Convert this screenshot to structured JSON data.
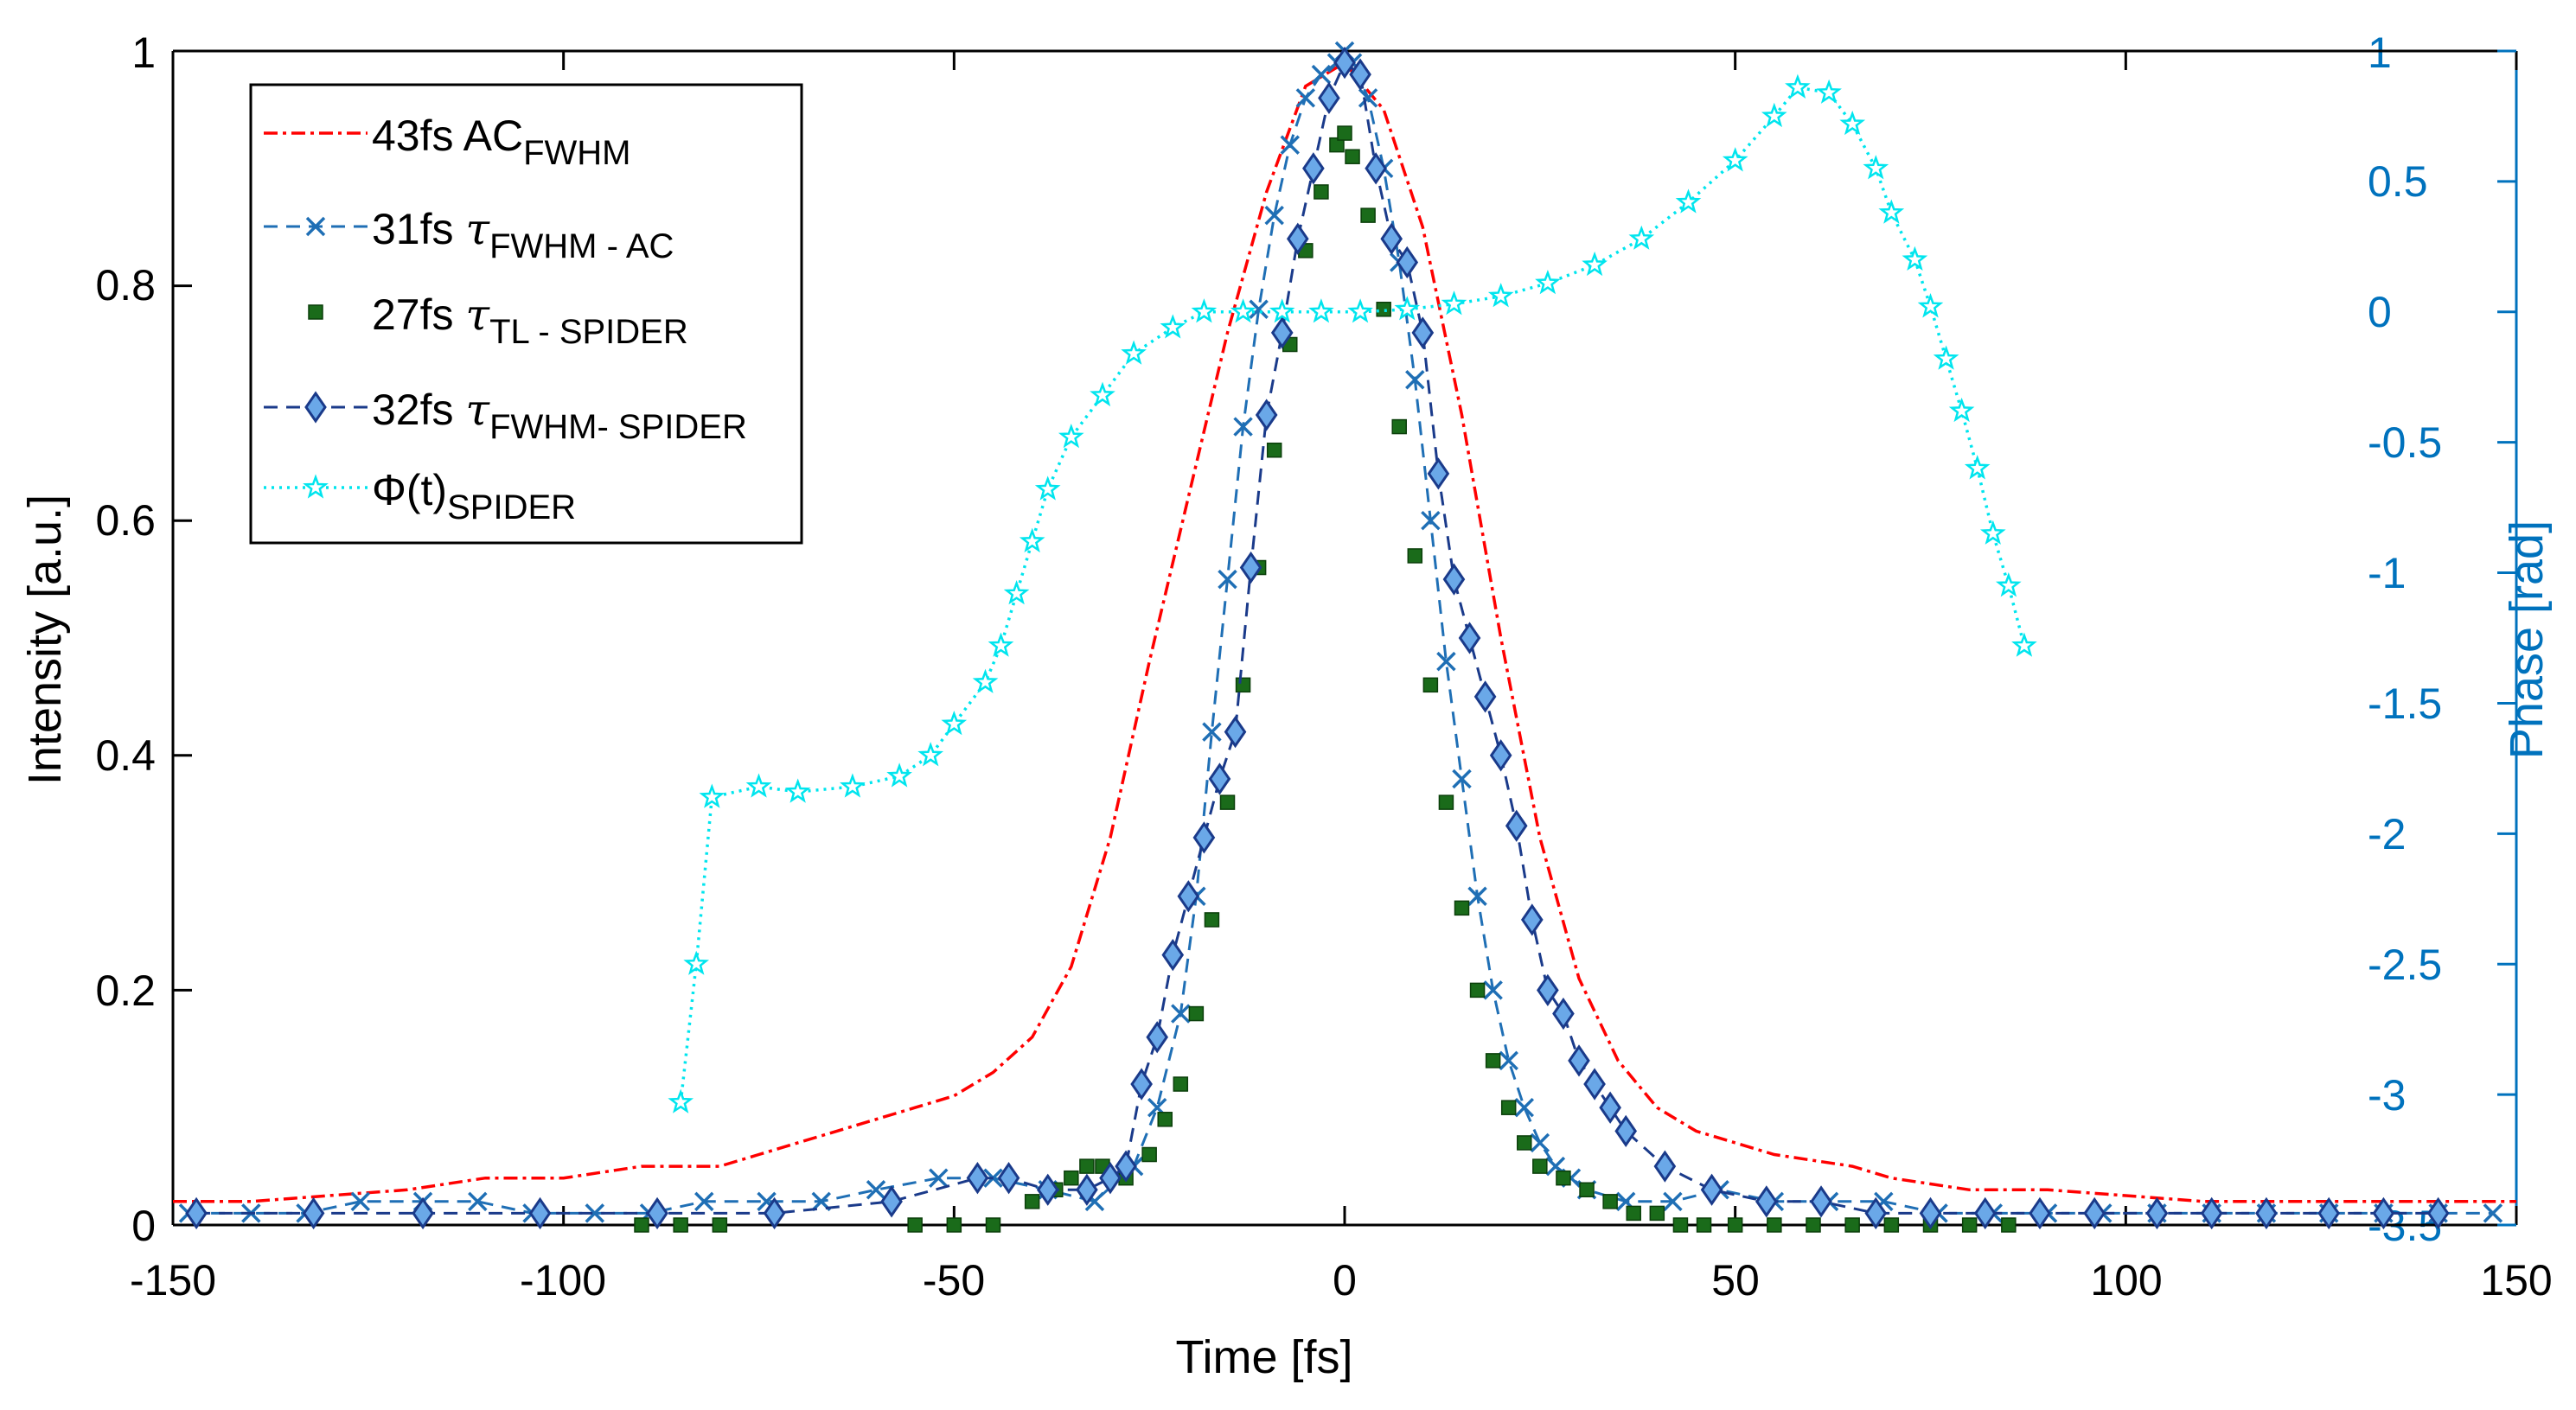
{
  "chart_data": {
    "type": "line",
    "xlabel": "Time [fs]",
    "ylabel": "Intensity [a.u.]",
    "y2label": "Phase [rad]",
    "xlim": [
      -150,
      150
    ],
    "ylim": [
      0,
      1
    ],
    "y2lim": [
      -3.5,
      1
    ],
    "grid": false,
    "legend_position": "top-left",
    "x_ticks": [
      "-150",
      "-100",
      "-50",
      "0",
      "50",
      "100",
      "150"
    ],
    "y_ticks": [
      "0",
      "0.2",
      "0.4",
      "0.6",
      "0.8",
      "1"
    ],
    "y2_ticks": [
      "-3.5",
      "-3",
      "-2.5",
      "-2",
      "-1.5",
      "-1",
      "-0.5",
      "0",
      "0.5",
      "1"
    ],
    "colors": {
      "axis_left": "#000000",
      "axis_right": "#0072bd",
      "ac": "#ff0000",
      "tau_fwhm_ac": "#1f6fb5",
      "tau_tl": "#1a6b1a",
      "tau_fwhm_spider_fill": "#6aa8e8",
      "tau_fwhm_spider_edge": "#1a3a8a",
      "phase": "#00e5ee"
    },
    "legend": [
      {
        "prefix": "43fs ",
        "symbol": "",
        "main": "AC",
        "sub": "FWHM"
      },
      {
        "prefix": "31fs ",
        "symbol": "τ",
        "main": "",
        "sub": "FWHM - AC"
      },
      {
        "prefix": "27fs ",
        "symbol": "τ",
        "main": "",
        "sub": "TL - SPIDER"
      },
      {
        "prefix": "32fs ",
        "symbol": "τ",
        "main": "",
        "sub": "FWHM- SPIDER"
      },
      {
        "prefix": "",
        "symbol": "",
        "main": "Φ(t)",
        "sub": "SPIDER"
      }
    ],
    "series": [
      {
        "axis": "left",
        "style": "dashdot",
        "marker": "none",
        "x": [
          -150,
          -140,
          -130,
          -120,
          -110,
          -100,
          -90,
          -80,
          -75,
          -70,
          -65,
          -60,
          -55,
          -50,
          -45,
          -40,
          -35,
          -30,
          -25,
          -20,
          -15,
          -10,
          -5,
          0,
          5,
          10,
          15,
          20,
          25,
          30,
          35,
          40,
          45,
          50,
          55,
          60,
          65,
          70,
          75,
          80,
          90,
          100,
          110,
          120,
          130,
          140,
          150
        ],
        "y": [
          0.02,
          0.02,
          0.025,
          0.03,
          0.04,
          0.04,
          0.05,
          0.05,
          0.06,
          0.07,
          0.08,
          0.09,
          0.1,
          0.11,
          0.13,
          0.16,
          0.22,
          0.33,
          0.48,
          0.62,
          0.76,
          0.88,
          0.97,
          0.99,
          0.95,
          0.85,
          0.69,
          0.5,
          0.33,
          0.21,
          0.14,
          0.1,
          0.08,
          0.07,
          0.06,
          0.055,
          0.05,
          0.04,
          0.035,
          0.03,
          0.03,
          0.025,
          0.02,
          0.02,
          0.02,
          0.02,
          0.02
        ]
      },
      {
        "axis": "left",
        "style": "dashed",
        "marker": "x",
        "x": [
          -148,
          -140,
          -133,
          -126,
          -118,
          -111,
          -104,
          -96,
          -89,
          -82,
          -74,
          -67,
          -60,
          -52,
          -45,
          -38,
          -32,
          -27,
          -24,
          -21,
          -19,
          -17,
          -15,
          -13,
          -11,
          -9,
          -7,
          -5,
          -3,
          -1,
          0,
          1,
          3,
          5,
          7,
          9,
          11,
          13,
          15,
          17,
          19,
          21,
          23,
          25,
          27,
          29,
          31,
          36,
          42,
          48,
          55,
          62,
          69,
          76,
          83,
          90,
          97,
          104,
          111,
          118,
          126,
          133,
          140,
          147
        ],
        "y": [
          0.01,
          0.01,
          0.01,
          0.02,
          0.02,
          0.02,
          0.01,
          0.01,
          0.01,
          0.02,
          0.02,
          0.02,
          0.03,
          0.04,
          0.04,
          0.03,
          0.02,
          0.05,
          0.1,
          0.18,
          0.28,
          0.42,
          0.55,
          0.68,
          0.78,
          0.86,
          0.92,
          0.96,
          0.98,
          0.99,
          1.0,
          0.99,
          0.96,
          0.9,
          0.82,
          0.72,
          0.6,
          0.48,
          0.38,
          0.28,
          0.2,
          0.14,
          0.1,
          0.07,
          0.05,
          0.04,
          0.03,
          0.02,
          0.02,
          0.03,
          0.02,
          0.02,
          0.02,
          0.01,
          0.01,
          0.01,
          0.01,
          0.01,
          0.01,
          0.01,
          0.01,
          0.01,
          0.01,
          0.01
        ]
      },
      {
        "axis": "left",
        "style": "none",
        "marker": "square",
        "x": [
          -90,
          -85,
          -80,
          -55,
          -50,
          -45,
          -40,
          -37,
          -35,
          -33,
          -31,
          -28,
          -25,
          -23,
          -21,
          -19,
          -17,
          -15,
          -13,
          -11,
          -9,
          -7,
          -5,
          -3,
          -1,
          0,
          1,
          3,
          5,
          7,
          9,
          11,
          13,
          15,
          17,
          19,
          21,
          23,
          25,
          28,
          31,
          34,
          37,
          40,
          43,
          46,
          50,
          55,
          60,
          65,
          70,
          75,
          80,
          85
        ],
        "y": [
          0.0,
          0.0,
          0.0,
          0.0,
          0.0,
          0.0,
          0.02,
          0.03,
          0.04,
          0.05,
          0.05,
          0.04,
          0.06,
          0.09,
          0.12,
          0.18,
          0.26,
          0.36,
          0.46,
          0.56,
          0.66,
          0.75,
          0.83,
          0.88,
          0.92,
          0.93,
          0.91,
          0.86,
          0.78,
          0.68,
          0.57,
          0.46,
          0.36,
          0.27,
          0.2,
          0.14,
          0.1,
          0.07,
          0.05,
          0.04,
          0.03,
          0.02,
          0.01,
          0.01,
          0.0,
          0.0,
          0.0,
          0.0,
          0.0,
          0.0,
          0.0,
          0.0,
          0.0,
          0.0
        ]
      },
      {
        "axis": "left",
        "style": "dashed",
        "marker": "diamond",
        "x": [
          -147,
          -132,
          -118,
          -103,
          -88,
          -73,
          -58,
          -47,
          -43,
          -38,
          -33,
          -30,
          -28,
          -26,
          -24,
          -22,
          -20,
          -18,
          -16,
          -14,
          -12,
          -10,
          -8,
          -6,
          -4,
          -2,
          0,
          2,
          4,
          6,
          8,
          10,
          12,
          14,
          16,
          18,
          20,
          22,
          24,
          26,
          28,
          30,
          32,
          34,
          36,
          41,
          47,
          54,
          61,
          68,
          75,
          82,
          89,
          96,
          104,
          111,
          118,
          126,
          133,
          140
        ],
        "y": [
          0.01,
          0.01,
          0.01,
          0.01,
          0.01,
          0.01,
          0.02,
          0.04,
          0.04,
          0.03,
          0.03,
          0.04,
          0.05,
          0.12,
          0.16,
          0.23,
          0.28,
          0.33,
          0.38,
          0.42,
          0.56,
          0.69,
          0.76,
          0.84,
          0.9,
          0.96,
          0.99,
          0.98,
          0.9,
          0.84,
          0.82,
          0.76,
          0.64,
          0.55,
          0.5,
          0.45,
          0.4,
          0.34,
          0.26,
          0.2,
          0.18,
          0.14,
          0.12,
          0.1,
          0.08,
          0.05,
          0.03,
          0.02,
          0.02,
          0.01,
          0.01,
          0.01,
          0.01,
          0.01,
          0.01,
          0.01,
          0.01,
          0.01,
          0.01,
          0.01
        ]
      },
      {
        "axis": "right",
        "style": "dotted",
        "marker": "star",
        "x": [
          -85,
          -83,
          -81,
          -75,
          -70,
          -63,
          -57,
          -53,
          -50,
          -46,
          -44,
          -42,
          -40,
          -38,
          -35,
          -31,
          -27,
          -22,
          -18,
          -13,
          -8,
          -3,
          2,
          8,
          14,
          20,
          26,
          32,
          38,
          44,
          50,
          55,
          58,
          62,
          65,
          68,
          70,
          73,
          75,
          77,
          79,
          81,
          83,
          85,
          87
        ],
        "y": [
          -3.03,
          -2.5,
          -1.86,
          -1.82,
          -1.84,
          -1.82,
          -1.78,
          -1.7,
          -1.58,
          -1.42,
          -1.28,
          -1.08,
          -0.88,
          -0.68,
          -0.48,
          -0.32,
          -0.16,
          -0.06,
          0.0,
          0.0,
          0.0,
          0.0,
          0.0,
          0.01,
          0.03,
          0.06,
          0.11,
          0.18,
          0.28,
          0.42,
          0.58,
          0.75,
          0.86,
          0.84,
          0.72,
          0.55,
          0.38,
          0.2,
          0.02,
          -0.18,
          -0.38,
          -0.6,
          -0.85,
          -1.05,
          -1.28
        ]
      }
    ]
  }
}
